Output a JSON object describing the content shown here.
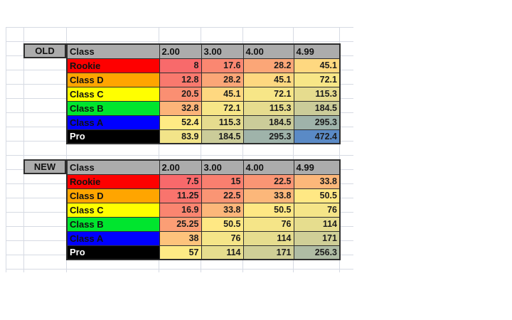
{
  "sheet": {
    "background": "#ffffff",
    "gridline_color": "#d6dae3",
    "header_bg": "#acacac",
    "border_color": "#2e2e2e",
    "heatmap_scale": {
      "low": "#F8696B",
      "mid": "#FFEB84",
      "high": "#5A8AC6"
    }
  },
  "tables": [
    {
      "section_label": "OLD",
      "columns": [
        "Class",
        "2.00",
        "3.00",
        "4.00",
        "4.99"
      ],
      "rows": [
        {
          "label": "Rookie",
          "label_bg": "#fe0000",
          "label_fg": "#111111",
          "values": [
            "8",
            "17.6",
            "28.2",
            "45.1"
          ],
          "value_colors": [
            "#F86A6B",
            "#FA8771",
            "#FBA677",
            "#FED880"
          ]
        },
        {
          "label": "Class D",
          "label_bg": "#ffa500",
          "label_fg": "#111111",
          "values": [
            "12.8",
            "28.2",
            "45.1",
            "72.1"
          ],
          "value_colors": [
            "#F9796E",
            "#FBA677",
            "#FED880",
            "#F7E687"
          ]
        },
        {
          "label": "Class C",
          "label_bg": "#ffff00",
          "label_fg": "#111111",
          "values": [
            "20.5",
            "45.1",
            "72.1",
            "115.3"
          ],
          "value_colors": [
            "#FA8F72",
            "#FED880",
            "#F7E687",
            "#E6DC8E"
          ]
        },
        {
          "label": "Class B",
          "label_bg": "#00e52e",
          "label_fg": "#111111",
          "values": [
            "32.8",
            "72.1",
            "115.3",
            "184.5"
          ],
          "value_colors": [
            "#FCB479",
            "#F7E687",
            "#E6DC8E",
            "#CBCC99"
          ]
        },
        {
          "label": "Class A",
          "label_bg": "#0000ff",
          "label_fg": "#111111",
          "values": [
            "52.4",
            "115.3",
            "184.5",
            "295.3"
          ],
          "value_colors": [
            "#FFEB84",
            "#E6DC8E",
            "#CBCC99",
            "#9FB3AA"
          ]
        },
        {
          "label": "Pro",
          "label_bg": "#000000",
          "label_fg": "#ffffff",
          "values": [
            "83.9",
            "184.5",
            "295.3",
            "472.4"
          ],
          "value_colors": [
            "#F2E489",
            "#CBCC99",
            "#9FB3AA",
            "#5A8AC6"
          ]
        }
      ]
    },
    {
      "section_label": "NEW",
      "columns": [
        "Class",
        "2.00",
        "3.00",
        "4.00",
        "4.99"
      ],
      "rows": [
        {
          "label": "Rookie",
          "label_bg": "#fe0000",
          "label_fg": "#111111",
          "values": [
            "7.5",
            "15",
            "22.5",
            "33.8"
          ],
          "value_colors": [
            "#F8696B",
            "#F97F6F",
            "#FA9574",
            "#FCB77A"
          ]
        },
        {
          "label": "Class D",
          "label_bg": "#ffa500",
          "label_fg": "#111111",
          "values": [
            "11.25",
            "22.5",
            "33.8",
            "50.5"
          ],
          "value_colors": [
            "#F9746D",
            "#FA9574",
            "#FCB77A",
            "#FFE884"
          ]
        },
        {
          "label": "Class C",
          "label_bg": "#ffff00",
          "label_fg": "#111111",
          "values": [
            "16.9",
            "33.8",
            "50.5",
            "76"
          ],
          "value_colors": [
            "#FA8570",
            "#FCB77A",
            "#FFE884",
            "#F5E588"
          ]
        },
        {
          "label": "Class B",
          "label_bg": "#00e52e",
          "label_fg": "#111111",
          "values": [
            "25.25",
            "50.5",
            "76",
            "114"
          ],
          "value_colors": [
            "#FB9E75",
            "#FFE884",
            "#F5E588",
            "#E6DD8E"
          ]
        },
        {
          "label": "Class A",
          "label_bg": "#0000ff",
          "label_fg": "#111111",
          "values": [
            "38",
            "76",
            "114",
            "171"
          ],
          "value_colors": [
            "#FDC37C",
            "#F5E588",
            "#E6DD8E",
            "#D0CF97"
          ]
        },
        {
          "label": "Pro",
          "label_bg": "#000000",
          "label_fg": "#ffffff",
          "values": [
            "57",
            "114",
            "171",
            "256.3"
          ],
          "value_colors": [
            "#FDEA85",
            "#E6DD8E",
            "#D0CF97",
            "#AFBCA4"
          ]
        }
      ]
    }
  ]
}
